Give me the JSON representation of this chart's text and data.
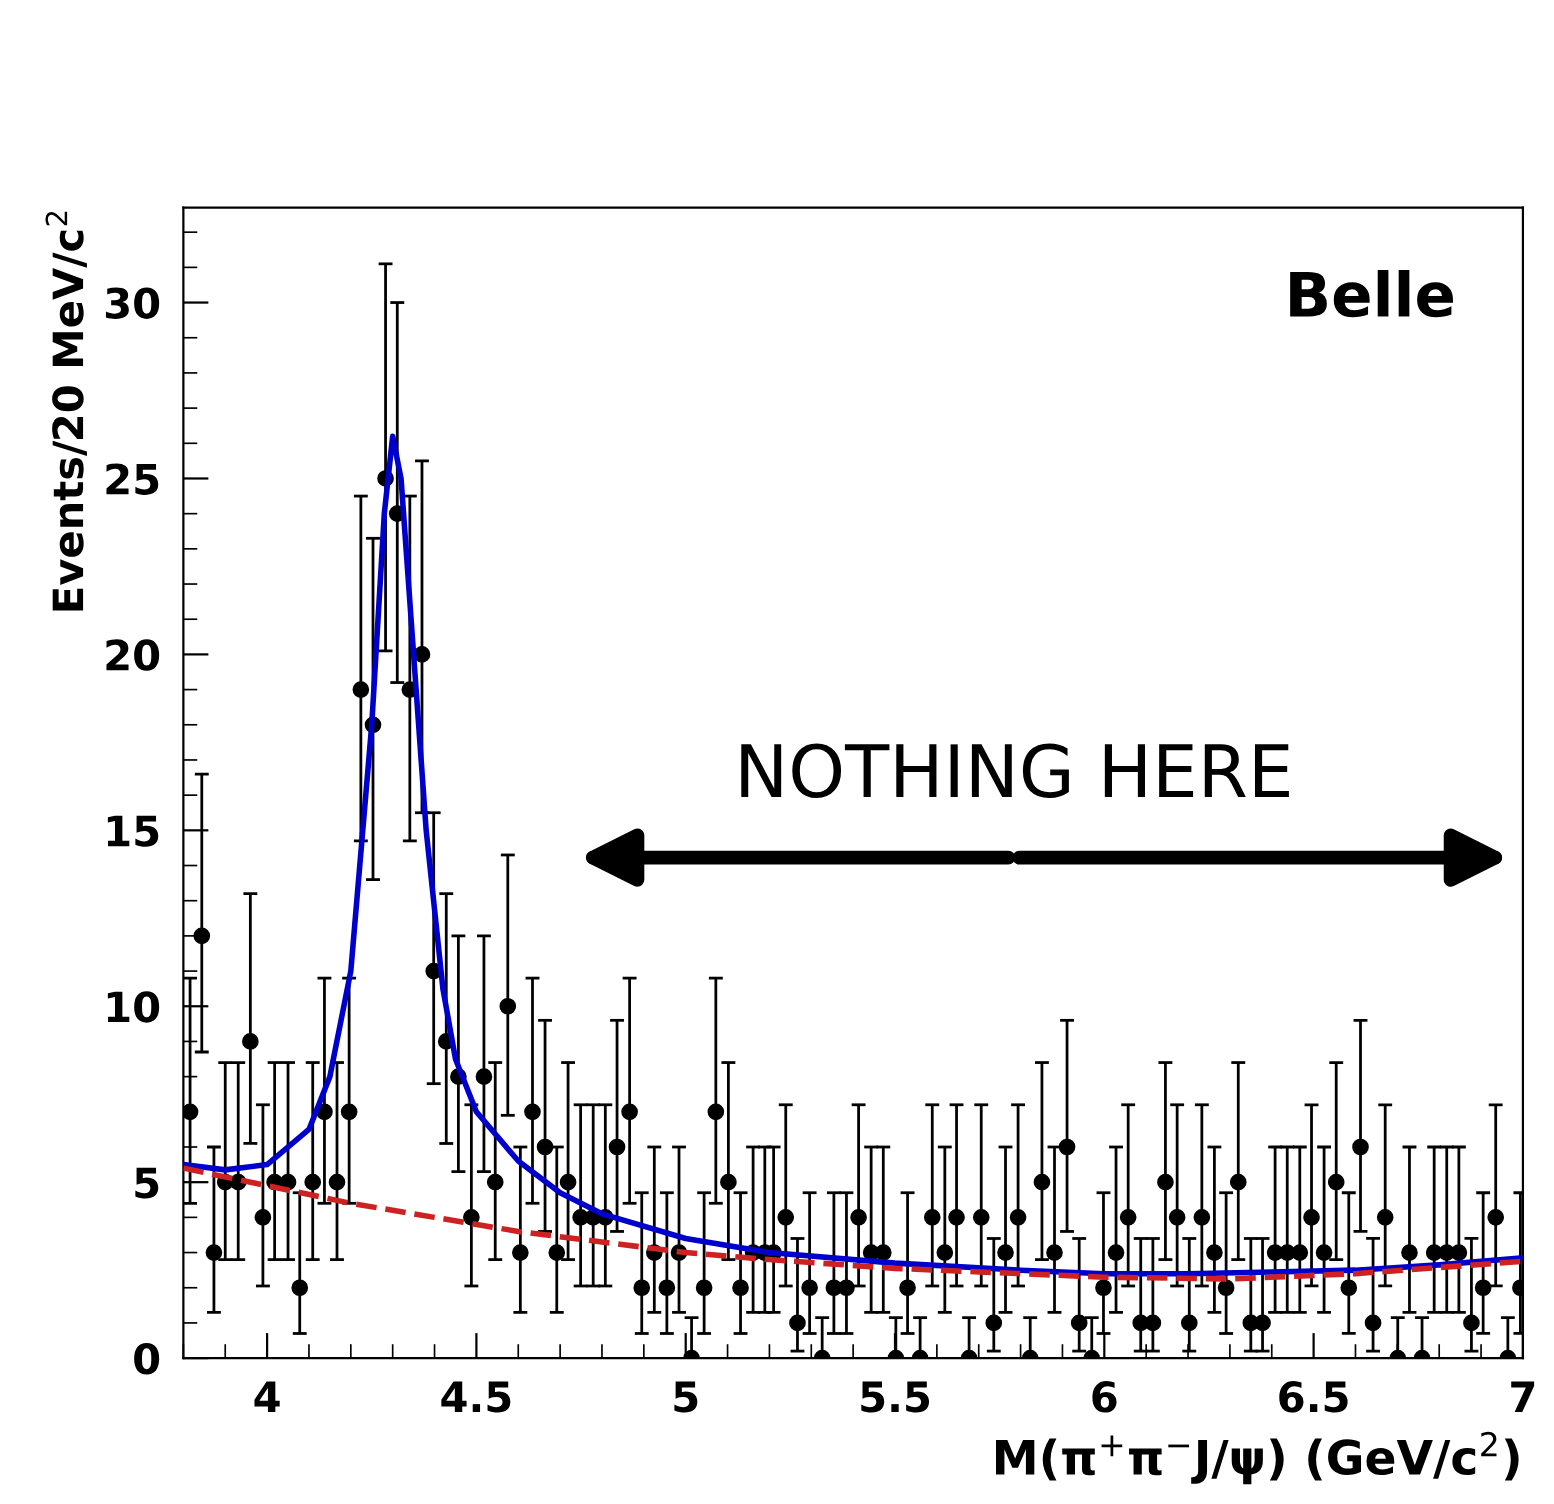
{
  "chart_data": {
    "type": "scatter",
    "xlabel": "M(π$^{+}$π$^{−}$J/ψ) (GeV/c$^{2}$)",
    "ylabel": "Events/20 MeV/c$^{2}$",
    "annotations": [
      "Belle",
      "NOTHING HERE"
    ],
    "xlim": [
      3.8,
      7.0
    ],
    "xticks": [
      4,
      4.5,
      5,
      5.5,
      6,
      6.5,
      7
    ],
    "ylim": [
      0,
      32.7
    ],
    "yticks": [
      0,
      5,
      10,
      15,
      20,
      25,
      30
    ],
    "grid": false,
    "legend": false,
    "series": [
      {
        "color": "#000000",
        "marker": "circle",
        "x": [
          3.816,
          3.844,
          3.873,
          3.9,
          3.931,
          3.96,
          3.99,
          4.018,
          4.05,
          4.078,
          4.109,
          4.137,
          4.167,
          4.196,
          4.224,
          4.253,
          4.283,
          4.311,
          4.341,
          4.37,
          4.398,
          4.428,
          4.457,
          4.488,
          4.518,
          4.545,
          4.575,
          4.605,
          4.634,
          4.664,
          4.692,
          4.719,
          4.749,
          4.779,
          4.808,
          4.836,
          4.866,
          4.895,
          4.925,
          4.955,
          4.984,
          5.014,
          5.044,
          5.072,
          5.102,
          5.131,
          5.161,
          5.189,
          5.21,
          5.239,
          5.267,
          5.296,
          5.326,
          5.354,
          5.384,
          5.413,
          5.443,
          5.472,
          5.502,
          5.53,
          5.56,
          5.589,
          5.619,
          5.647,
          5.677,
          5.706,
          5.736,
          5.764,
          5.794,
          5.823,
          5.851,
          5.881,
          5.911,
          5.94,
          5.97,
          5.998,
          6.028,
          6.057,
          6.087,
          6.116,
          6.146,
          6.174,
          6.203,
          6.233,
          6.263,
          6.291,
          6.32,
          6.35,
          6.378,
          6.408,
          6.437,
          6.467,
          6.495,
          6.525,
          6.554,
          6.584,
          6.612,
          6.642,
          6.671,
          6.701,
          6.729,
          6.759,
          6.788,
          6.818,
          6.847,
          6.877,
          6.905,
          6.935,
          6.964,
          6.994
        ],
        "values": [
          7,
          12,
          3,
          5,
          5,
          9,
          4,
          5,
          5,
          2,
          5,
          7,
          5,
          7,
          19,
          18,
          25,
          24,
          19,
          20,
          11,
          9,
          8,
          4,
          8,
          5,
          10,
          3,
          7,
          6,
          3,
          5,
          4,
          4,
          4,
          6,
          7,
          2,
          3,
          2,
          3,
          0,
          2,
          7,
          5,
          2,
          3,
          3,
          3,
          4,
          1,
          2,
          0,
          2,
          2,
          4,
          3,
          3,
          0,
          2,
          0,
          4,
          3,
          4,
          0,
          4,
          1,
          3,
          4,
          0,
          5,
          3,
          6,
          1,
          0,
          2,
          3,
          4,
          1,
          1,
          5,
          4,
          1,
          4,
          3,
          2,
          5,
          1,
          1,
          3,
          3,
          3,
          4,
          3,
          5,
          2,
          6,
          1,
          4,
          0,
          3,
          0,
          3,
          3,
          3,
          1,
          2,
          4,
          0,
          2
        ],
        "errors": [
          [
            4.4,
            10.8
          ],
          [
            8.7,
            16.6
          ],
          [
            1.3,
            6.0
          ],
          [
            2.8,
            8.4
          ],
          [
            2.8,
            8.4
          ],
          [
            6.1,
            13.2
          ],
          [
            2.05,
            7.2
          ],
          [
            2.8,
            8.4
          ],
          [
            2.8,
            8.4
          ],
          [
            0.7,
            4.7
          ],
          [
            2.8,
            8.4
          ],
          [
            4.4,
            10.8
          ],
          [
            2.8,
            8.4
          ],
          [
            4.4,
            10.8
          ],
          [
            14.7,
            24.5
          ],
          [
            13.6,
            23.3
          ],
          [
            20.1,
            31.1
          ],
          [
            19.2,
            30.0
          ],
          [
            14.7,
            24.5
          ],
          [
            15.5,
            25.5
          ],
          [
            7.8,
            15.5
          ],
          [
            6.1,
            13.2
          ],
          [
            5.3,
            12.0
          ],
          [
            2.05,
            7.2
          ],
          [
            5.3,
            12.0
          ],
          [
            2.8,
            8.4
          ],
          [
            6.9,
            14.3
          ],
          [
            1.3,
            6.0
          ],
          [
            4.4,
            10.8
          ],
          [
            3.6,
            9.6
          ],
          [
            1.3,
            6.0
          ],
          [
            2.8,
            8.4
          ],
          [
            2.05,
            7.2
          ],
          [
            2.05,
            7.2
          ],
          [
            2.05,
            7.2
          ],
          [
            3.6,
            9.6
          ],
          [
            4.4,
            10.8
          ],
          [
            0.7,
            4.7
          ],
          [
            1.3,
            6.0
          ],
          [
            0.7,
            4.7
          ],
          [
            1.3,
            6.0
          ],
          [
            0,
            1.15
          ],
          [
            0.7,
            4.7
          ],
          [
            4.4,
            10.8
          ],
          [
            2.8,
            8.4
          ],
          [
            0.7,
            4.7
          ],
          [
            1.3,
            6.0
          ],
          [
            1.3,
            6.0
          ],
          [
            1.3,
            6.0
          ],
          [
            2.05,
            7.2
          ],
          [
            0.2,
            3.4
          ],
          [
            0.7,
            4.7
          ],
          [
            0,
            1.15
          ],
          [
            0.7,
            4.7
          ],
          [
            0.7,
            4.7
          ],
          [
            2.05,
            7.2
          ],
          [
            1.3,
            6.0
          ],
          [
            1.3,
            6.0
          ],
          [
            0,
            1.15
          ],
          [
            0.7,
            4.7
          ],
          [
            0,
            1.15
          ],
          [
            2.05,
            7.2
          ],
          [
            1.3,
            6.0
          ],
          [
            2.05,
            7.2
          ],
          [
            0,
            1.15
          ],
          [
            2.05,
            7.2
          ],
          [
            0.2,
            3.4
          ],
          [
            1.3,
            6.0
          ],
          [
            2.05,
            7.2
          ],
          [
            0,
            1.15
          ],
          [
            2.8,
            8.4
          ],
          [
            1.3,
            6.0
          ],
          [
            3.6,
            9.6
          ],
          [
            0.2,
            3.4
          ],
          [
            0,
            1.15
          ],
          [
            0.7,
            4.7
          ],
          [
            1.3,
            6.0
          ],
          [
            2.05,
            7.2
          ],
          [
            0.2,
            3.4
          ],
          [
            0.2,
            3.4
          ],
          [
            2.8,
            8.4
          ],
          [
            2.05,
            7.2
          ],
          [
            0.2,
            3.4
          ],
          [
            2.05,
            7.2
          ],
          [
            1.3,
            6.0
          ],
          [
            0.7,
            4.7
          ],
          [
            2.8,
            8.4
          ],
          [
            0.2,
            3.4
          ],
          [
            0.2,
            3.4
          ],
          [
            1.3,
            6.0
          ],
          [
            1.3,
            6.0
          ],
          [
            1.3,
            6.0
          ],
          [
            2.05,
            7.2
          ],
          [
            1.3,
            6.0
          ],
          [
            2.8,
            8.4
          ],
          [
            0.7,
            4.7
          ],
          [
            3.6,
            9.6
          ],
          [
            0.2,
            3.4
          ],
          [
            2.05,
            7.2
          ],
          [
            0,
            1.15
          ],
          [
            1.3,
            6.0
          ],
          [
            0,
            1.15
          ],
          [
            1.3,
            6.0
          ],
          [
            1.3,
            6.0
          ],
          [
            1.3,
            6.0
          ],
          [
            0.2,
            3.4
          ],
          [
            0.7,
            4.7
          ],
          [
            2.05,
            7.2
          ],
          [
            0,
            1.15
          ],
          [
            0.7,
            4.7
          ]
        ]
      },
      {
        "type": "line",
        "color": "#0000cc",
        "line_style": "solid",
        "marker": "none",
        "x": [
          3.8,
          3.9,
          4.0,
          4.1,
          4.15,
          4.2,
          4.25,
          4.28,
          4.3,
          4.32,
          4.35,
          4.38,
          4.42,
          4.45,
          4.5,
          4.6,
          4.7,
          4.8,
          5.0,
          5.2,
          5.5,
          5.8,
          6.0,
          6.2,
          6.4,
          6.6,
          6.8,
          7.0
        ],
        "values": [
          5.5,
          5.35,
          5.5,
          6.5,
          8,
          11,
          18,
          24,
          26.2,
          25,
          20,
          15,
          10.5,
          8.5,
          7,
          5.6,
          4.7,
          4.1,
          3.4,
          3.0,
          2.7,
          2.5,
          2.4,
          2.4,
          2.45,
          2.5,
          2.65,
          2.85
        ]
      },
      {
        "type": "line",
        "color": "#cc2222",
        "line_style": "dashed",
        "marker": "none",
        "x": [
          3.8,
          4.0,
          4.2,
          4.4,
          4.6,
          4.8,
          5.0,
          5.2,
          5.5,
          6.0,
          6.3,
          6.6,
          7.0
        ],
        "values": [
          5.4,
          4.9,
          4.4,
          4.0,
          3.6,
          3.3,
          3.0,
          2.8,
          2.55,
          2.3,
          2.25,
          2.4,
          2.75
        ]
      }
    ]
  }
}
